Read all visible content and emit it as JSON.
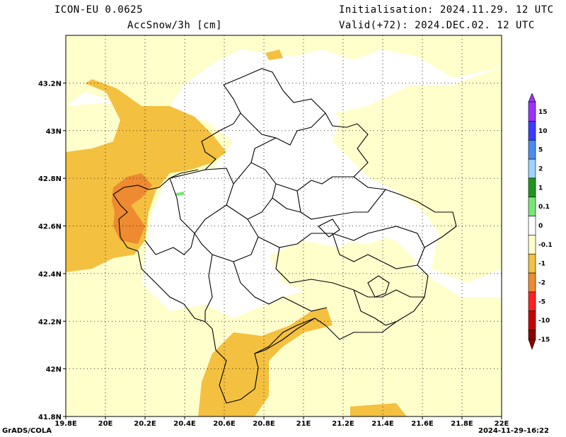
{
  "header": {
    "model": "ICON-EU 0.0625",
    "variable": "AccSnow/3h [cm]",
    "init": "Initialisation: 2024.11.29. 12 UTC",
    "valid": "Valid(+72): 2024.DEC.02. 12 UTC"
  },
  "footer": {
    "left": "GrADS/COLA",
    "right": "2024-11-29-16:22"
  },
  "map": {
    "lon_ticks": [
      "19.8E",
      "20E",
      "20.2E",
      "20.4E",
      "20.6E",
      "20.8E",
      "21E",
      "21.2E",
      "21.4E",
      "21.6E",
      "21.8E",
      "22E"
    ],
    "lat_ticks": [
      "43.2N",
      "43N",
      "42.8N",
      "42.6N",
      "42.4N",
      "42.2N",
      "42N",
      "41.8N"
    ],
    "lon_range": [
      19.8,
      22.0
    ],
    "lat_range": [
      41.8,
      43.4
    ],
    "grid": "dotted"
  },
  "colorbar": {
    "labels": [
      "15",
      "10",
      "5",
      "2",
      "1",
      "0.1",
      "0",
      "-0.1",
      "-1",
      "-2",
      "-5",
      "-10",
      "-15"
    ],
    "colors": [
      "#9a32ff",
      "#3c3cff",
      "#4a8cf2",
      "#a0d2ff",
      "#1e961e",
      "#78e678",
      "#ffffff",
      "#ffffcc",
      "#f4c040",
      "#ee8a30",
      "#ff2020",
      "#c80000",
      "#8c0000"
    ]
  }
}
